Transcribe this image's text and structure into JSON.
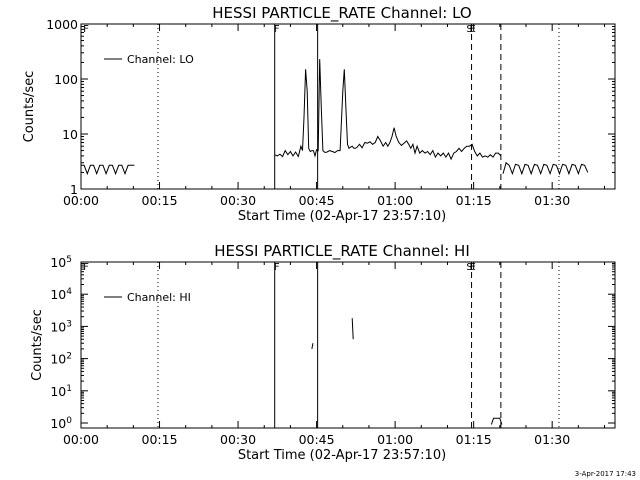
{
  "chart_data": [
    {
      "type": "line",
      "title": "HESSI PARTICLE_RATE Channel: LO",
      "xlabel": "Start Time (02-Apr-17 23:57:10)",
      "ylabel": "Counts/sec",
      "yscale": "log",
      "xlim_min": [
        0,
        102
      ],
      "ylim": [
        1,
        1000
      ],
      "x_ticks": [
        "00:00",
        "00:15",
        "00:30",
        "00:45",
        "01:00",
        "01:15",
        "01:30"
      ],
      "x_tick_minutes": [
        0,
        15,
        30,
        45,
        60,
        75,
        90
      ],
      "y_ticks": [
        "1",
        "10",
        "100",
        "1000"
      ],
      "y_tick_values": [
        1,
        10,
        100,
        1000
      ],
      "legend": {
        "text": "Channel: LO",
        "placement": "top-left"
      },
      "series": [
        {
          "label_min": [
            0,
            0.6,
            1.2,
            1.8,
            2.4,
            3.0,
            3.6,
            4.2,
            4.8,
            5.4,
            6.0,
            6.6,
            7.2,
            7.8,
            8.4,
            9.0,
            9.6,
            10.2
          ],
          "values": [
            2.7,
            2.7,
            1.9,
            2.7,
            2.7,
            1.9,
            2.7,
            2.7,
            1.9,
            2.7,
            2.7,
            1.9,
            2.7,
            2.7,
            1.9,
            2.7,
            2.7,
            2.7
          ]
        },
        {
          "label_min": [
            37.0,
            37.5,
            38.0,
            38.5,
            39.0,
            39.5,
            40.0,
            40.5,
            41.0,
            41.5,
            42.0,
            42.3,
            42.6,
            42.9,
            43.2,
            43.5,
            43.8,
            44.1,
            44.4,
            44.7,
            45.0,
            45.3,
            45.6,
            45.9,
            46.2,
            46.6,
            47.0,
            47.5,
            48.0,
            48.5,
            49.0,
            49.5,
            50.0,
            50.3,
            50.6,
            50.9,
            51.2,
            51.5,
            51.8,
            52.1,
            52.4,
            52.7,
            53.2,
            53.7,
            54.2,
            54.7,
            55.2,
            55.7,
            56.2,
            56.7,
            57.2,
            57.7,
            58.2,
            58.6,
            59.0,
            59.4,
            59.8,
            60.2,
            60.7,
            61.2,
            61.7,
            62.2,
            62.6,
            63.0,
            63.4,
            63.8,
            64.2,
            64.7,
            65.2,
            65.7,
            66.2,
            66.7,
            67.2,
            67.7,
            68.2,
            68.7,
            69.2,
            69.7,
            70.2,
            70.7,
            71.2,
            71.7,
            72.2,
            72.7,
            73.2,
            73.7,
            74.2,
            74.7,
            75.2,
            75.7,
            76.2,
            76.7,
            77.2,
            77.7,
            78.2,
            78.7,
            79.2,
            79.7,
            80.2
          ],
          "values": [
            4.2,
            4.0,
            4.3,
            3.9,
            5.0,
            4.2,
            4.8,
            4.0,
            4.7,
            3.9,
            6.0,
            5.0,
            20,
            150,
            60,
            5.5,
            4.8,
            5.0,
            5.0,
            4.0,
            5.2,
            5.0,
            230,
            30,
            5.0,
            4.6,
            4.7,
            5.0,
            4.8,
            4.6,
            5.0,
            5.0,
            60,
            150,
            30,
            6.5,
            5.5,
            5.8,
            6.0,
            5.5,
            5.5,
            5.7,
            6.5,
            5.6,
            7.0,
            6.8,
            7.2,
            6.5,
            7.0,
            9.0,
            7.5,
            6.0,
            7.0,
            6.0,
            7.0,
            9.0,
            13,
            9.0,
            7.0,
            6.2,
            6.8,
            7.5,
            6.5,
            5.5,
            6.5,
            4.5,
            6.0,
            4.5,
            5.0,
            4.5,
            4.8,
            4.2,
            5.0,
            3.8,
            4.5,
            4.0,
            4.5,
            3.8,
            4.5,
            3.5,
            4.5,
            4.8,
            5.5,
            4.8,
            5.5,
            6.0,
            6.0,
            6.5,
            4.8,
            4.0,
            4.5,
            3.8,
            4.0,
            3.8,
            4.2,
            3.8,
            4.5,
            4.5,
            4.0
          ]
        },
        {
          "label_min": [
            80.6,
            81.2,
            81.8,
            82.4,
            83.0,
            83.6,
            84.2,
            84.8,
            85.4,
            86.0,
            86.6,
            87.2,
            87.8,
            88.4,
            89.0,
            89.6,
            90.2,
            90.8,
            91.4,
            92.0,
            92.6,
            93.2,
            93.8,
            94.4,
            95.0,
            95.6,
            96.2,
            96.8
          ],
          "values": [
            1.9,
            3.0,
            2.7,
            1.9,
            2.8,
            2.7,
            1.9,
            2.8,
            2.7,
            1.9,
            2.8,
            2.7,
            1.9,
            2.8,
            2.7,
            1.9,
            2.8,
            2.7,
            1.9,
            2.8,
            2.7,
            1.9,
            2.8,
            2.7,
            1.9,
            2.8,
            2.7,
            2.0
          ]
        }
      ]
    },
    {
      "type": "line",
      "title": "HESSI PARTICLE_RATE Channel: HI",
      "xlabel": "Start Time (02-Apr-17 23:57:10)",
      "ylabel": "Counts/sec",
      "yscale": "log",
      "xlim_min": [
        0,
        102
      ],
      "ylim": [
        0.7,
        100000
      ],
      "x_ticks": [
        "00:00",
        "00:15",
        "00:30",
        "00:45",
        "01:00",
        "01:15",
        "01:30"
      ],
      "x_tick_minutes": [
        0,
        15,
        30,
        45,
        60,
        75,
        90
      ],
      "y_ticks": [
        "10^0",
        "10^1",
        "10^2",
        "10^3",
        "10^4",
        "10^5"
      ],
      "y_tick_values": [
        1,
        10,
        100,
        1000,
        10000,
        100000
      ],
      "legend": {
        "text": "Channel: HI",
        "placement": "top-left"
      },
      "series": [
        {
          "label_min": [
            44.1,
            44.3
          ],
          "values": [
            200,
            300
          ]
        },
        {
          "label_min": [
            51.8,
            52.0
          ],
          "values": [
            1800,
            400
          ]
        },
        {
          "label_min": [
            78.4,
            78.8,
            79.4,
            80.0,
            80.4
          ],
          "values": [
            0.9,
            1.4,
            1.4,
            1.4,
            0.9
          ]
        }
      ]
    }
  ],
  "markers": {
    "solid_min": [
      37.0,
      45.2
    ],
    "dashed_min": [
      74.6,
      80.2
    ],
    "dotted_min": [
      14.7,
      91.3
    ],
    "letter_labels": [
      {
        "minute": 37.0,
        "text": "F"
      },
      {
        "minute": 74.6,
        "text": "S"
      },
      {
        "minute": 75.2,
        "text": "E"
      }
    ]
  },
  "corner_labels": {
    "top": "F"
  },
  "timestamp": "3-Apr-2017 17:43"
}
